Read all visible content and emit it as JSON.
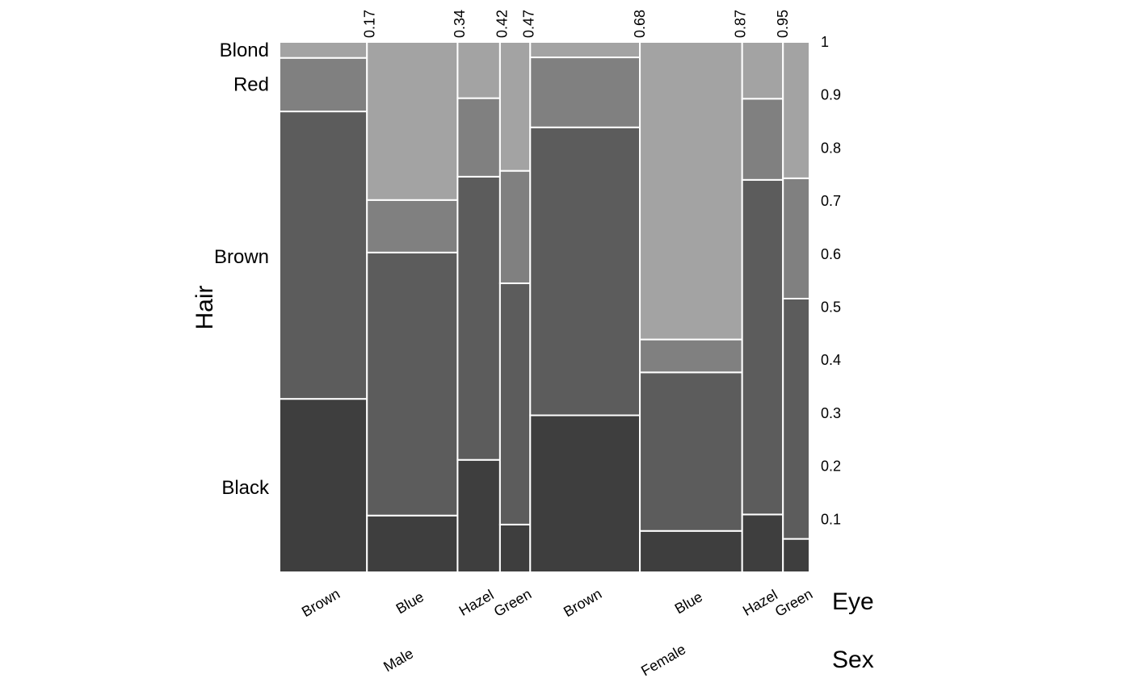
{
  "chart_data": {
    "type": "mosaic",
    "variable_titles": {
      "hair": "Hair",
      "eye": "Eye",
      "sex": "Sex"
    },
    "hair_levels": [
      "Black",
      "Brown",
      "Red",
      "Blond"
    ],
    "hair_label_positions": [
      0.16,
      0.595,
      0.92,
      0.985
    ],
    "hair_colors": [
      "#3e3e3e",
      "#5c5c5c",
      "#808080",
      "#a3a3a3"
    ],
    "y_ticks": [
      0.1,
      0.2,
      0.3,
      0.4,
      0.5,
      0.6,
      0.7,
      0.8,
      0.9,
      1
    ],
    "y_tick_labels": [
      "0.1",
      "0.2",
      "0.3",
      "0.4",
      "0.5",
      "0.6",
      "0.7",
      "0.8",
      "0.9",
      "1"
    ],
    "top_ticks": [
      0.17,
      0.34,
      0.42,
      0.47,
      0.68,
      0.87,
      0.95
    ],
    "top_tick_labels": [
      "0.17",
      "0.34",
      "0.42",
      "0.47",
      "0.68",
      "0.87",
      "0.95"
    ],
    "sex_groups": [
      {
        "label": "Male",
        "start": 0.0,
        "end": 0.473
      },
      {
        "label": "Female",
        "start": 0.473,
        "end": 1.0
      }
    ],
    "columns": [
      {
        "eye": "Brown",
        "sex": "Male",
        "start": 0.0,
        "end": 0.165,
        "hair": [
          0.327,
          0.542,
          0.101,
          0.03
        ]
      },
      {
        "eye": "Blue",
        "sex": "Male",
        "start": 0.165,
        "end": 0.336,
        "hair": [
          0.107,
          0.496,
          0.099,
          0.298
        ]
      },
      {
        "eye": "Hazel",
        "sex": "Male",
        "start": 0.336,
        "end": 0.416,
        "hair": [
          0.212,
          0.534,
          0.148,
          0.106
        ]
      },
      {
        "eye": "Green",
        "sex": "Male",
        "start": 0.416,
        "end": 0.473,
        "hair": [
          0.09,
          0.455,
          0.212,
          0.243
        ]
      },
      {
        "eye": "Brown",
        "sex": "Female",
        "start": 0.473,
        "end": 0.68,
        "hair": [
          0.296,
          0.543,
          0.132,
          0.029
        ]
      },
      {
        "eye": "Blue",
        "sex": "Female",
        "start": 0.68,
        "end": 0.873,
        "hair": [
          0.078,
          0.299,
          0.062,
          0.561
        ]
      },
      {
        "eye": "Hazel",
        "sex": "Female",
        "start": 0.873,
        "end": 0.95,
        "hair": [
          0.109,
          0.631,
          0.153,
          0.107
        ]
      },
      {
        "eye": "Green",
        "sex": "Female",
        "start": 0.95,
        "end": 1.0,
        "hair": [
          0.063,
          0.453,
          0.227,
          0.257
        ]
      }
    ]
  }
}
